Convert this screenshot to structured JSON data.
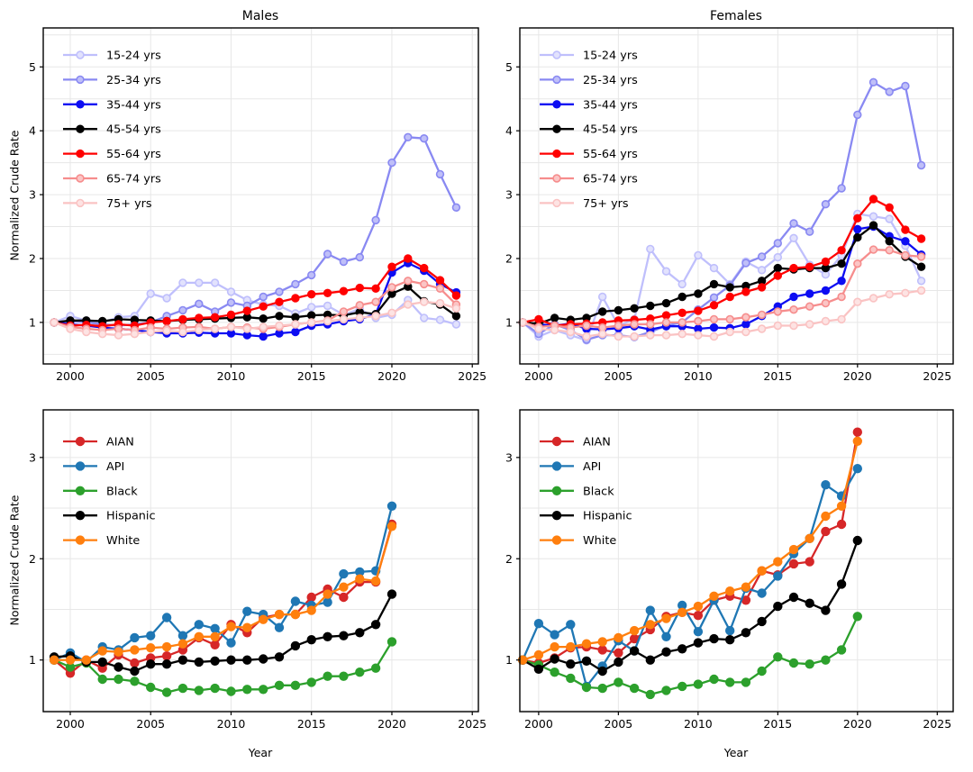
{
  "figure": {
    "background": "#ffffff",
    "grid_color": "#e7e7e7",
    "spine_color": "#000000",
    "tick_color": "#000000",
    "text_color": "#000000"
  },
  "ylabel": "Normalized Crude Rate",
  "xlabel": "Year",
  "chart_data": [
    {
      "id": "males-by-age",
      "type": "line",
      "title": "Males",
      "ylabel": "Normalized Crude Rate",
      "xlabel": "",
      "x": [
        1999,
        2000,
        2001,
        2002,
        2003,
        2004,
        2005,
        2006,
        2007,
        2008,
        2009,
        2010,
        2011,
        2012,
        2013,
        2014,
        2015,
        2016,
        2017,
        2018,
        2019,
        2020,
        2021,
        2022,
        2023,
        2024
      ],
      "xlim": [
        1998.32,
        2025.38
      ],
      "ylim": [
        0.35,
        5.61
      ],
      "xticks": [
        2000,
        2005,
        2010,
        2015,
        2020,
        2025
      ],
      "yticks": [
        1,
        2,
        3,
        4,
        5
      ],
      "grid_y_step": 0.5,
      "legend_position": "upper-left",
      "series": [
        {
          "name": "15-24 yrs",
          "color": "#bfbffc",
          "marker_face": "#e2e2fd",
          "values": [
            1.0,
            1.1,
            1.03,
            1.0,
            1.08,
            1.1,
            1.45,
            1.38,
            1.62,
            1.62,
            1.62,
            1.48,
            1.35,
            1.28,
            1.26,
            1.14,
            1.24,
            1.26,
            1.12,
            1.21,
            1.07,
            1.12,
            1.35,
            1.07,
            1.04,
            0.97
          ]
        },
        {
          "name": "25-34 yrs",
          "color": "#8989f2",
          "marker_face": "#bfbff8",
          "values": [
            1.0,
            1.02,
            1.0,
            0.97,
            0.95,
            0.97,
            1.0,
            1.1,
            1.19,
            1.29,
            1.17,
            1.31,
            1.26,
            1.4,
            1.48,
            1.6,
            1.74,
            2.07,
            1.95,
            2.02,
            2.6,
            3.5,
            3.9,
            3.88,
            3.32,
            2.8
          ]
        },
        {
          "name": "35-44 yrs",
          "color": "#0d0df2",
          "marker_face": "#0d0df2",
          "values": [
            1.0,
            0.97,
            0.95,
            0.92,
            0.9,
            0.88,
            0.85,
            0.83,
            0.83,
            0.84,
            0.83,
            0.83,
            0.8,
            0.78,
            0.83,
            0.85,
            0.95,
            0.97,
            1.02,
            1.05,
            1.13,
            1.78,
            1.93,
            1.81,
            1.6,
            1.47
          ]
        },
        {
          "name": "45-54 yrs",
          "color": "#000000",
          "marker_face": "#000000",
          "values": [
            1.0,
            1.03,
            1.03,
            1.02,
            1.05,
            1.04,
            1.03,
            1.02,
            1.04,
            1.05,
            1.06,
            1.07,
            1.08,
            1.06,
            1.1,
            1.08,
            1.11,
            1.12,
            1.11,
            1.16,
            1.13,
            1.45,
            1.56,
            1.33,
            1.28,
            1.1
          ]
        },
        {
          "name": "55-64 yrs",
          "color": "#ff0000",
          "marker_face": "#ff0000",
          "values": [
            1.0,
            0.95,
            0.96,
            0.94,
            0.97,
            0.95,
            1.0,
            1.02,
            1.05,
            1.07,
            1.08,
            1.12,
            1.18,
            1.25,
            1.32,
            1.38,
            1.44,
            1.46,
            1.49,
            1.54,
            1.53,
            1.87,
            2.0,
            1.85,
            1.66,
            1.42
          ]
        },
        {
          "name": "65-74 yrs",
          "color": "#f68d8d",
          "marker_face": "#fbc5c5",
          "values": [
            1.0,
            0.93,
            0.9,
            0.88,
            0.9,
            0.88,
            0.92,
            0.9,
            0.92,
            0.93,
            0.9,
            0.93,
            0.92,
            0.9,
            0.93,
            0.97,
            1.0,
            1.03,
            1.17,
            1.27,
            1.32,
            1.55,
            1.65,
            1.6,
            1.53,
            1.28
          ]
        },
        {
          "name": "75+ yrs",
          "color": "#fac3c3",
          "marker_face": "#fde3e3",
          "values": [
            1.0,
            0.9,
            0.85,
            0.82,
            0.8,
            0.82,
            0.85,
            0.87,
            0.85,
            0.88,
            0.9,
            0.93,
            0.9,
            0.93,
            0.95,
            0.97,
            1.0,
            1.02,
            1.05,
            1.07,
            1.1,
            1.15,
            1.28,
            1.32,
            1.3,
            1.22
          ]
        }
      ]
    },
    {
      "id": "females-by-age",
      "type": "line",
      "title": "Females",
      "ylabel": "",
      "xlabel": "",
      "x": [
        1999,
        2000,
        2001,
        2002,
        2003,
        2004,
        2005,
        2006,
        2007,
        2008,
        2009,
        2010,
        2011,
        2012,
        2013,
        2014,
        2015,
        2016,
        2017,
        2018,
        2019,
        2020,
        2021,
        2022,
        2023,
        2024
      ],
      "xlim": [
        1998.82,
        2026.0
      ],
      "ylim": [
        0.35,
        5.61
      ],
      "xticks": [
        2000,
        2005,
        2010,
        2015,
        2020,
        2025
      ],
      "yticks": [
        1,
        2,
        3,
        4,
        5
      ],
      "grid_y_step": 0.5,
      "legend_position": "upper-left",
      "series": [
        {
          "name": "15-24 yrs",
          "color": "#bfbffc",
          "marker_face": "#e2e2fd",
          "values": [
            1.0,
            0.78,
            0.88,
            0.8,
            0.72,
            1.4,
            0.95,
            1.05,
            2.15,
            1.8,
            1.6,
            2.05,
            1.85,
            1.6,
            1.95,
            1.82,
            2.02,
            2.32,
            1.9,
            1.75,
            2.05,
            2.7,
            2.66,
            2.62,
            2.2,
            1.65
          ]
        },
        {
          "name": "25-34 yrs",
          "color": "#8989f2",
          "marker_face": "#bfbff8",
          "values": [
            1.0,
            0.82,
            0.97,
            0.88,
            0.73,
            0.8,
            0.8,
            0.77,
            0.85,
            0.95,
            1.0,
            1.2,
            1.39,
            1.58,
            1.93,
            2.03,
            2.24,
            2.55,
            2.42,
            2.85,
            3.1,
            4.25,
            4.76,
            4.61,
            4.7,
            3.46
          ]
        },
        {
          "name": "35-44 yrs",
          "color": "#0d0df2",
          "marker_face": "#0d0df2",
          "values": [
            1.0,
            0.97,
            0.95,
            0.98,
            0.9,
            0.89,
            0.91,
            0.94,
            0.89,
            0.94,
            0.94,
            0.9,
            0.92,
            0.91,
            0.97,
            1.1,
            1.25,
            1.4,
            1.45,
            1.5,
            1.65,
            2.46,
            2.5,
            2.35,
            2.27,
            2.06
          ]
        },
        {
          "name": "45-54 yrs",
          "color": "#000000",
          "marker_face": "#000000",
          "values": [
            1.0,
            0.98,
            1.07,
            1.04,
            1.07,
            1.17,
            1.19,
            1.22,
            1.26,
            1.3,
            1.4,
            1.45,
            1.6,
            1.55,
            1.57,
            1.65,
            1.85,
            1.83,
            1.85,
            1.85,
            1.92,
            2.33,
            2.52,
            2.27,
            2.03,
            1.87
          ]
        },
        {
          "name": "55-64 yrs",
          "color": "#ff0000",
          "marker_face": "#ff0000",
          "values": [
            1.0,
            1.05,
            0.95,
            0.97,
            0.98,
            1.0,
            1.03,
            1.04,
            1.06,
            1.11,
            1.15,
            1.18,
            1.27,
            1.4,
            1.48,
            1.55,
            1.73,
            1.85,
            1.87,
            1.95,
            2.13,
            2.63,
            2.93,
            2.8,
            2.45,
            2.31
          ]
        },
        {
          "name": "65-74 yrs",
          "color": "#f68d8d",
          "marker_face": "#fbc5c5",
          "values": [
            1.0,
            0.93,
            0.95,
            0.92,
            0.95,
            0.92,
            0.95,
            0.97,
            0.97,
            1.0,
            1.0,
            1.02,
            1.05,
            1.05,
            1.08,
            1.12,
            1.17,
            1.2,
            1.25,
            1.3,
            1.4,
            1.92,
            2.14,
            2.13,
            2.05,
            2.03
          ]
        },
        {
          "name": "75+ yrs",
          "color": "#fac3c3",
          "marker_face": "#fde3e3",
          "values": [
            1.0,
            0.9,
            0.88,
            0.85,
            0.78,
            0.82,
            0.78,
            0.78,
            0.8,
            0.8,
            0.82,
            0.8,
            0.78,
            0.85,
            0.85,
            0.9,
            0.95,
            0.95,
            0.97,
            1.02,
            1.05,
            1.32,
            1.38,
            1.44,
            1.46,
            1.5
          ]
        }
      ]
    },
    {
      "id": "males-by-race",
      "type": "line",
      "title": "",
      "ylabel": "Normalized Crude Rate",
      "xlabel": "Year",
      "x": [
        1999,
        2000,
        2001,
        2002,
        2003,
        2004,
        2005,
        2006,
        2007,
        2008,
        2009,
        2010,
        2011,
        2012,
        2013,
        2014,
        2015,
        2016,
        2017,
        2018,
        2019,
        2020
      ],
      "xlim": [
        1998.32,
        2025.38
      ],
      "ylim": [
        0.49,
        3.47
      ],
      "xticks": [
        2000,
        2005,
        2010,
        2015,
        2020,
        2025
      ],
      "yticks": [
        1,
        2,
        3
      ],
      "grid_y_step": 0.5,
      "legend_position": "upper-left",
      "series": [
        {
          "name": "AIAN",
          "color": "#d62728",
          "marker_face": "#d62728",
          "values": [
            1.0,
            0.87,
            1.0,
            0.92,
            1.05,
            0.97,
            1.02,
            1.04,
            1.1,
            1.22,
            1.15,
            1.35,
            1.27,
            1.42,
            1.45,
            1.45,
            1.62,
            1.7,
            1.62,
            1.77,
            1.77,
            2.34
          ]
        },
        {
          "name": "API",
          "color": "#1f77b4",
          "marker_face": "#1f77b4",
          "values": [
            1.0,
            1.07,
            0.98,
            1.13,
            1.1,
            1.22,
            1.24,
            1.42,
            1.24,
            1.35,
            1.31,
            1.17,
            1.48,
            1.45,
            1.32,
            1.58,
            1.54,
            1.57,
            1.85,
            1.87,
            1.88,
            2.52
          ]
        },
        {
          "name": "Black",
          "color": "#2ca02c",
          "marker_face": "#2ca02c",
          "values": [
            1.0,
            0.93,
            0.97,
            0.81,
            0.81,
            0.79,
            0.73,
            0.68,
            0.72,
            0.7,
            0.72,
            0.69,
            0.71,
            0.71,
            0.75,
            0.75,
            0.78,
            0.84,
            0.84,
            0.88,
            0.92,
            1.18
          ]
        },
        {
          "name": "Hispanic",
          "color": "#000000",
          "marker_face": "#000000",
          "values": [
            1.03,
            1.04,
            0.98,
            0.98,
            0.93,
            0.89,
            0.96,
            0.96,
            1.0,
            0.98,
            0.99,
            1.0,
            1.0,
            1.01,
            1.03,
            1.14,
            1.2,
            1.23,
            1.24,
            1.27,
            1.35,
            1.65
          ]
        },
        {
          "name": "White",
          "color": "#ff7f0e",
          "marker_face": "#ff7f0e",
          "values": [
            1.0,
            1.0,
            1.0,
            1.09,
            1.08,
            1.1,
            1.12,
            1.13,
            1.16,
            1.23,
            1.23,
            1.33,
            1.32,
            1.4,
            1.45,
            1.45,
            1.49,
            1.65,
            1.72,
            1.8,
            1.78,
            2.32
          ]
        }
      ]
    },
    {
      "id": "females-by-race",
      "type": "line",
      "title": "",
      "ylabel": "",
      "xlabel": "Year",
      "x": [
        1999,
        2000,
        2001,
        2002,
        2003,
        2004,
        2005,
        2006,
        2007,
        2008,
        2009,
        2010,
        2011,
        2012,
        2013,
        2014,
        2015,
        2016,
        2017,
        2018,
        2019,
        2020
      ],
      "xlim": [
        1998.82,
        2026.0
      ],
      "ylim": [
        0.49,
        3.47
      ],
      "xticks": [
        2000,
        2005,
        2010,
        2015,
        2020,
        2025
      ],
      "yticks": [
        1,
        2,
        3
      ],
      "grid_y_step": 0.5,
      "legend_position": "upper-left",
      "series": [
        {
          "name": "AIAN",
          "color": "#d62728",
          "marker_face": "#d62728",
          "values": [
            1.0,
            0.97,
            1.02,
            1.12,
            1.13,
            1.1,
            1.07,
            1.21,
            1.3,
            1.43,
            1.47,
            1.44,
            1.59,
            1.63,
            1.59,
            1.88,
            1.84,
            1.95,
            1.97,
            2.27,
            2.34,
            3.25
          ]
        },
        {
          "name": "API",
          "color": "#1f77b4",
          "marker_face": "#1f77b4",
          "values": [
            1.0,
            1.36,
            1.25,
            1.35,
            0.74,
            0.94,
            1.19,
            1.09,
            1.49,
            1.23,
            1.54,
            1.28,
            1.59,
            1.29,
            1.71,
            1.66,
            1.83,
            2.05,
            2.2,
            2.73,
            2.62,
            2.89
          ]
        },
        {
          "name": "Black",
          "color": "#2ca02c",
          "marker_face": "#2ca02c",
          "values": [
            1.0,
            0.95,
            0.88,
            0.82,
            0.73,
            0.72,
            0.78,
            0.72,
            0.66,
            0.7,
            0.74,
            0.76,
            0.81,
            0.78,
            0.78,
            0.89,
            1.03,
            0.97,
            0.96,
            1.0,
            1.1,
            1.43
          ]
        },
        {
          "name": "Hispanic",
          "color": "#000000",
          "marker_face": "#000000",
          "values": [
            1.0,
            0.91,
            1.01,
            0.96,
            0.99,
            0.89,
            0.98,
            1.09,
            1.0,
            1.08,
            1.11,
            1.17,
            1.21,
            1.2,
            1.27,
            1.38,
            1.53,
            1.62,
            1.56,
            1.49,
            1.75,
            2.18
          ]
        },
        {
          "name": "White",
          "color": "#ff7f0e",
          "marker_face": "#ff7f0e",
          "values": [
            1.0,
            1.05,
            1.13,
            1.13,
            1.16,
            1.18,
            1.22,
            1.29,
            1.35,
            1.41,
            1.47,
            1.53,
            1.63,
            1.68,
            1.72,
            1.88,
            1.97,
            2.09,
            2.2,
            2.42,
            2.52,
            3.16
          ]
        }
      ]
    }
  ]
}
